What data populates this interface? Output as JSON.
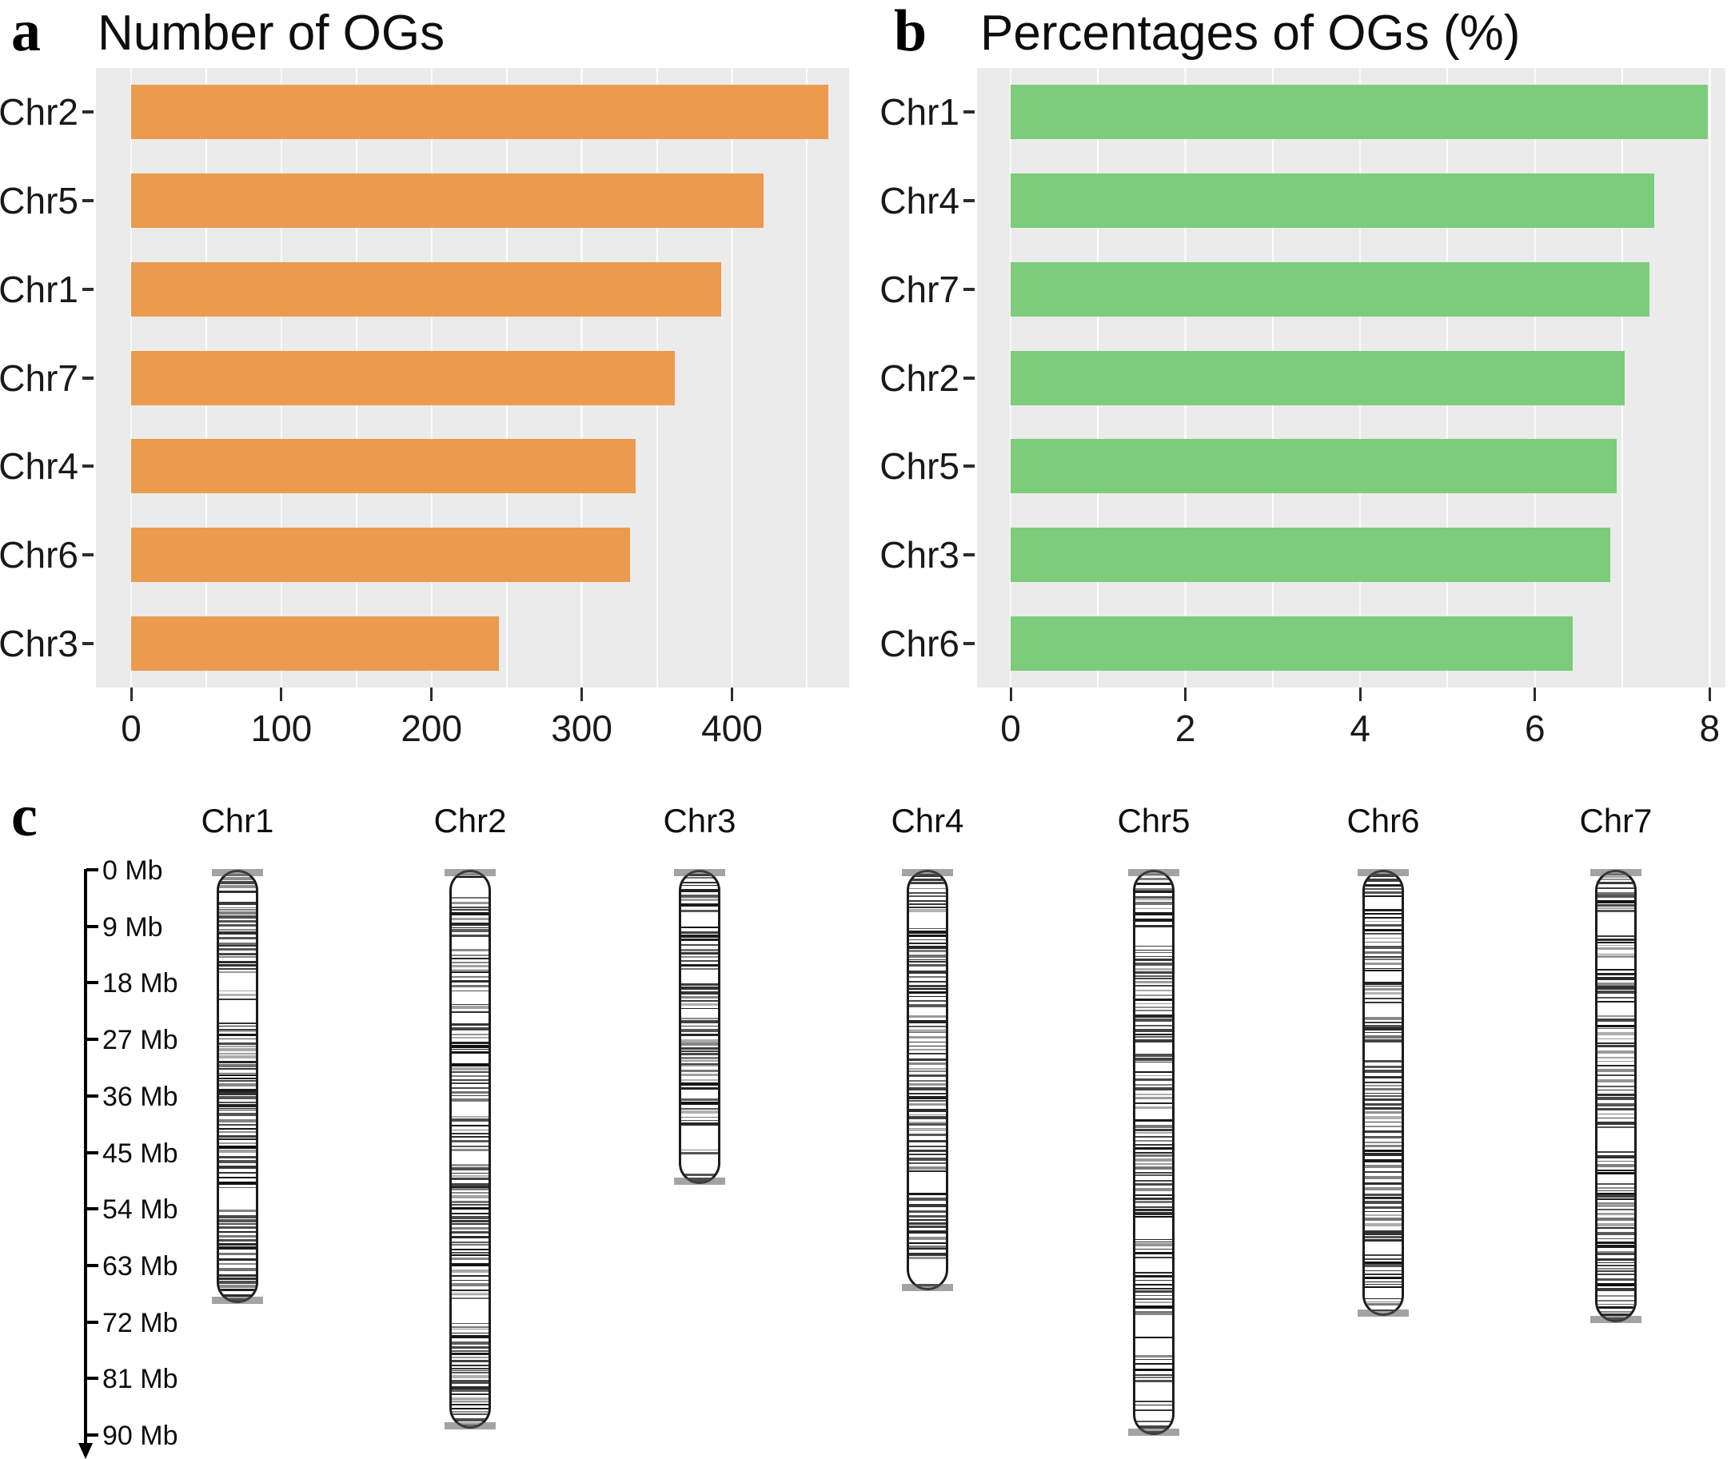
{
  "panel_letters": {
    "a": "a",
    "b": "b",
    "c": "c"
  },
  "chart_data": [
    {
      "panel": "a",
      "type": "bar",
      "orientation": "horizontal",
      "title": "Number of OGs",
      "categories": [
        "Chr2",
        "Chr5",
        "Chr1",
        "Chr7",
        "Chr4",
        "Chr6",
        "Chr3"
      ],
      "values": [
        464,
        421,
        393,
        362,
        336,
        332,
        245
      ],
      "xlabel": "",
      "ylabel": "",
      "xlim": [
        0,
        478
      ],
      "xticks": [
        0,
        100,
        200,
        300,
        400
      ],
      "minor_gridlines": [
        50,
        150,
        250,
        350,
        450
      ],
      "bar_color": "#EC9A4E",
      "panel_bg": "#EBEBEB",
      "grid_color": "#FFFFFF",
      "grid": "on",
      "legend": "none"
    },
    {
      "panel": "b",
      "type": "bar",
      "orientation": "horizontal",
      "title": "Percentages of OGs (%)",
      "categories": [
        "Chr1",
        "Chr4",
        "Chr7",
        "Chr2",
        "Chr5",
        "Chr3",
        "Chr6"
      ],
      "values": [
        7.98,
        7.37,
        7.31,
        7.03,
        6.94,
        6.86,
        6.43
      ],
      "xlabel": "",
      "ylabel": "",
      "xlim": [
        0,
        8.18
      ],
      "xticks": [
        0,
        2,
        4,
        6,
        8
      ],
      "minor_gridlines": [
        1,
        3,
        5,
        7
      ],
      "bar_color": "#7CCC7C",
      "panel_bg": "#EBEBEB",
      "grid_color": "#FFFFFF",
      "grid": "on",
      "legend": "none"
    },
    {
      "panel": "c",
      "type": "ideogram",
      "axis_unit": "Mb",
      "axis_range_mb": [
        0,
        90
      ],
      "axis_tick_labels": [
        "0 Mb",
        "9 Mb",
        "18 Mb",
        "27 Mb",
        "36 Mb",
        "45 Mb",
        "54 Mb",
        "63 Mb",
        "72 Mb",
        "81 Mb",
        "90 Mb"
      ],
      "chromosomes": [
        {
          "name": "Chr1",
          "length_mb": 69
        },
        {
          "name": "Chr2",
          "length_mb": 89
        },
        {
          "name": "Chr3",
          "length_mb": 50
        },
        {
          "name": "Chr4",
          "length_mb": 67
        },
        {
          "name": "Chr5",
          "length_mb": 90
        },
        {
          "name": "Chr6",
          "length_mb": 71
        },
        {
          "name": "Chr7",
          "length_mb": 72
        }
      ]
    }
  ]
}
